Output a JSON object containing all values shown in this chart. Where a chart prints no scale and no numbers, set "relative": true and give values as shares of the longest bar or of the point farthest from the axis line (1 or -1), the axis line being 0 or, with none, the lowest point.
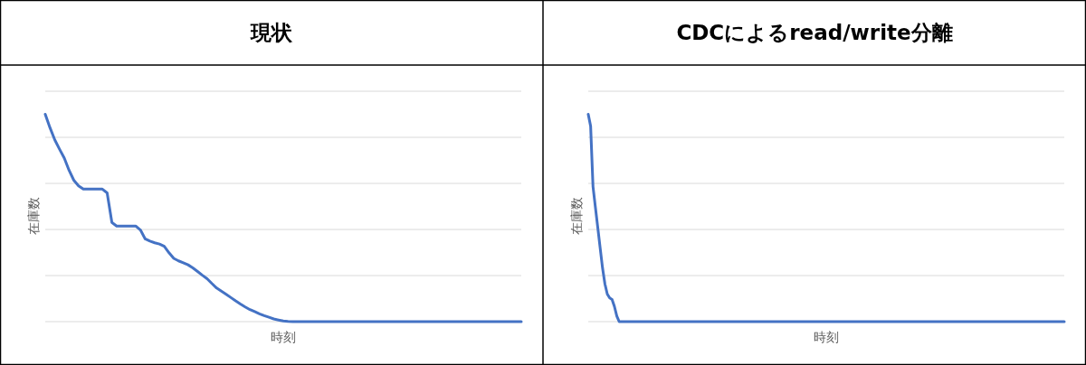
{
  "chart_data": [
    {
      "type": "line",
      "title": "現状",
      "xlabel": "時刻",
      "ylabel": "在庫数",
      "relative": true,
      "grid": "y",
      "categories": [
        null,
        null,
        null,
        null,
        null,
        null,
        null,
        null,
        null,
        null,
        null,
        null,
        null,
        null,
        null,
        null,
        null,
        null,
        null,
        null,
        null,
        null,
        null,
        null,
        null,
        null,
        null,
        null,
        null,
        null,
        null,
        null,
        null,
        null,
        null,
        null,
        null,
        null,
        null,
        null,
        null,
        null,
        null,
        null,
        null,
        null,
        null,
        null,
        null,
        null,
        null,
        null,
        null,
        null,
        null,
        null,
        null,
        null,
        null,
        null,
        null,
        null,
        null,
        null,
        null,
        null,
        null,
        null,
        null,
        null,
        null,
        null,
        null,
        null,
        null,
        null,
        null,
        null,
        null,
        null,
        null,
        null,
        null,
        null,
        null,
        null,
        null,
        null,
        null,
        null,
        null,
        null,
        null,
        null,
        null,
        null,
        null,
        null,
        null,
        null,
        null
      ],
      "series": [
        {
          "color": "#4472c4",
          "values": [
            1,
            0.935,
            0.877,
            0.832,
            0.789,
            0.73,
            0.682,
            0.655,
            0.639,
            0.639,
            0.639,
            0.639,
            0.639,
            0.621,
            0.478,
            0.461,
            0.461,
            0.461,
            0.461,
            0.461,
            0.442,
            0.399,
            0.388,
            0.38,
            0.374,
            0.363,
            0.332,
            0.305,
            0.293,
            0.284,
            0.274,
            0.259,
            0.242,
            0.224,
            0.207,
            0.184,
            0.162,
            0.147,
            0.132,
            0.116,
            0.1,
            0.085,
            0.071,
            0.058,
            0.048,
            0.038,
            0.029,
            0.021,
            0.013,
            0.008,
            0.003,
            0.001,
            0,
            0,
            0,
            0,
            0,
            0,
            0,
            0,
            0,
            0,
            0,
            0,
            0,
            0,
            0,
            0,
            0,
            0,
            0,
            0,
            0,
            0,
            0,
            0,
            0,
            0,
            0,
            0,
            0,
            0,
            0,
            0,
            0,
            0,
            0,
            0,
            0,
            0,
            0,
            0,
            0,
            0,
            0,
            0,
            0,
            0,
            0,
            0,
            0
          ]
        }
      ]
    },
    {
      "type": "line",
      "title": "CDCによるread/write分離",
      "xlabel": "時刻",
      "ylabel": "在庫数",
      "relative": true,
      "grid": "y",
      "categories": [
        null,
        null,
        null,
        null,
        null,
        null,
        null,
        null,
        null,
        null,
        null,
        null,
        null,
        null,
        null,
        null,
        null,
        null,
        null,
        null,
        null,
        null,
        null,
        null,
        null,
        null,
        null,
        null,
        null,
        null,
        null,
        null,
        null,
        null,
        null,
        null,
        null,
        null,
        null,
        null,
        null,
        null,
        null,
        null,
        null,
        null,
        null,
        null,
        null,
        null,
        null,
        null,
        null,
        null,
        null,
        null,
        null,
        null,
        null,
        null,
        null,
        null,
        null,
        null,
        null,
        null,
        null,
        null,
        null,
        null,
        null,
        null,
        null,
        null,
        null,
        null,
        null,
        null,
        null,
        null,
        null,
        null,
        null,
        null,
        null,
        null,
        null,
        null,
        null,
        null,
        null,
        null,
        null,
        null,
        null,
        null,
        null,
        null,
        null,
        null,
        null,
        null,
        null,
        null,
        null,
        null,
        null,
        null,
        null,
        null,
        null,
        null,
        null,
        null,
        null,
        null,
        null,
        null,
        null,
        null,
        null,
        null,
        null,
        null,
        null,
        null,
        null,
        null,
        null,
        null,
        null,
        null,
        null,
        null,
        null,
        null,
        null,
        null,
        null,
        null,
        null,
        null,
        null,
        null,
        null,
        null,
        null,
        null,
        null,
        null,
        null,
        null,
        null,
        null,
        null,
        null,
        null,
        null,
        null,
        null,
        null,
        null,
        null,
        null,
        null,
        null,
        null,
        null,
        null,
        null,
        null,
        null,
        null,
        null,
        null,
        null,
        null,
        null,
        null,
        null,
        null,
        null,
        null,
        null,
        null,
        null,
        null,
        null,
        null,
        null,
        null,
        null,
        null,
        null,
        null,
        null,
        null,
        null,
        null,
        null,
        null
      ],
      "series": [
        {
          "color": "#4472c4",
          "values": [
            1,
            0.943,
            0.651,
            0.552,
            0.454,
            0.356,
            0.259,
            0.182,
            0.133,
            0.114,
            0.107,
            0.073,
            0.027,
            0,
            0,
            0,
            0,
            0,
            0,
            0,
            0,
            0,
            0,
            0,
            0,
            0,
            0,
            0,
            0,
            0,
            0,
            0,
            0,
            0,
            0,
            0,
            0,
            0,
            0,
            0,
            0,
            0,
            0,
            0,
            0,
            0,
            0,
            0,
            0,
            0,
            0,
            0,
            0,
            0,
            0,
            0,
            0,
            0,
            0,
            0,
            0,
            0,
            0,
            0,
            0,
            0,
            0,
            0,
            0,
            0,
            0,
            0,
            0,
            0,
            0,
            0,
            0,
            0,
            0,
            0,
            0,
            0,
            0,
            0,
            0,
            0,
            0,
            0,
            0,
            0,
            0,
            0,
            0,
            0,
            0,
            0,
            0,
            0,
            0,
            0,
            0,
            0,
            0,
            0,
            0,
            0,
            0,
            0,
            0,
            0,
            0,
            0,
            0,
            0,
            0,
            0,
            0,
            0,
            0,
            0,
            0,
            0,
            0,
            0,
            0,
            0,
            0,
            0,
            0,
            0,
            0,
            0,
            0,
            0,
            0,
            0,
            0,
            0,
            0,
            0,
            0,
            0,
            0,
            0,
            0,
            0,
            0,
            0,
            0,
            0,
            0,
            0,
            0,
            0,
            0,
            0,
            0,
            0,
            0,
            0,
            0,
            0,
            0,
            0,
            0,
            0,
            0,
            0,
            0,
            0,
            0,
            0,
            0,
            0,
            0,
            0,
            0,
            0,
            0,
            0,
            0,
            0,
            0,
            0,
            0,
            0,
            0,
            0,
            0,
            0,
            0,
            0,
            0,
            0,
            0,
            0,
            0,
            0,
            0,
            0,
            0
          ]
        }
      ]
    }
  ]
}
